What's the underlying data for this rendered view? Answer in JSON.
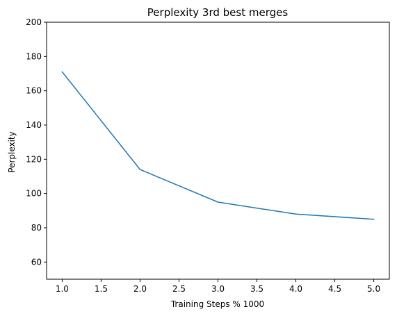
{
  "chart_data": {
    "type": "line",
    "title": "Perplexity 3rd best merges",
    "xlabel": "Training Steps % 1000",
    "ylabel": "Perplexity",
    "xlim": [
      0.8,
      5.2
    ],
    "ylim": [
      50,
      200
    ],
    "xticks": [
      "1.0",
      "1.5",
      "2.0",
      "2.5",
      "3.0",
      "3.5",
      "4.0",
      "4.5",
      "5.0"
    ],
    "yticks": [
      "60",
      "80",
      "100",
      "120",
      "140",
      "160",
      "180",
      "200"
    ],
    "grid": false,
    "series": [
      {
        "color": "#1f77b4",
        "x": [
          1.0,
          2.0,
          3.0,
          4.0,
          5.0
        ],
        "y": [
          171,
          114,
          95,
          88,
          85
        ]
      }
    ]
  }
}
